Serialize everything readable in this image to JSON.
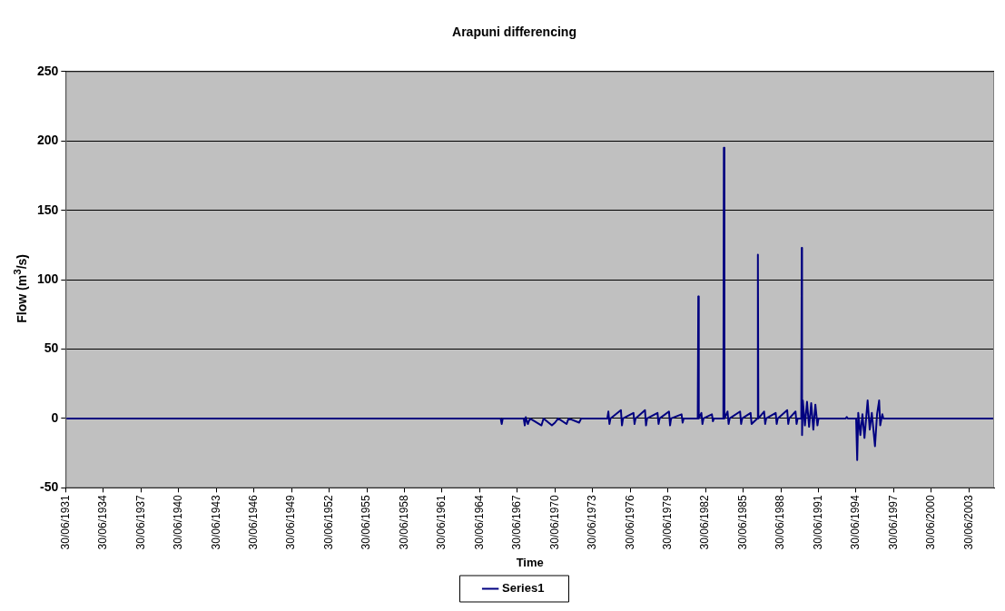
{
  "chart_data": {
    "type": "line",
    "title": "Arapuni differencing",
    "xlabel": "Time",
    "ylabel": "Flow (m$^{3}$/s)",
    "xlim": [
      "1931-06-30",
      "2005-06-30"
    ],
    "xticks": [
      {
        "value": "1931-06-30",
        "label": "30/06/1931"
      },
      {
        "value": "1934-06-30",
        "label": "30/06/1934"
      },
      {
        "value": "1937-06-30",
        "label": "30/06/1937"
      },
      {
        "value": "1940-06-30",
        "label": "30/06/1940"
      },
      {
        "value": "1943-06-30",
        "label": "30/06/1943"
      },
      {
        "value": "1946-06-30",
        "label": "30/06/1946"
      },
      {
        "value": "1949-06-30",
        "label": "30/06/1949"
      },
      {
        "value": "1952-06-30",
        "label": "30/06/1952"
      },
      {
        "value": "1955-06-30",
        "label": "30/06/1955"
      },
      {
        "value": "1958-06-30",
        "label": "30/06/1958"
      },
      {
        "value": "1961-06-30",
        "label": "30/06/1961"
      },
      {
        "value": "1964-06-30",
        "label": "30/06/1964"
      },
      {
        "value": "1967-06-30",
        "label": "30/06/1967"
      },
      {
        "value": "1970-06-30",
        "label": "30/06/1970"
      },
      {
        "value": "1973-06-30",
        "label": "30/06/1973"
      },
      {
        "value": "1976-06-30",
        "label": "30/06/1976"
      },
      {
        "value": "1979-06-30",
        "label": "30/06/1979"
      },
      {
        "value": "1982-06-30",
        "label": "30/06/1982"
      },
      {
        "value": "1985-06-30",
        "label": "30/06/1985"
      },
      {
        "value": "1988-06-30",
        "label": "30/06/1988"
      },
      {
        "value": "1991-06-30",
        "label": "30/06/1991"
      },
      {
        "value": "1994-06-30",
        "label": "30/06/1994"
      },
      {
        "value": "1997-06-30",
        "label": "30/06/1997"
      },
      {
        "value": "2000-06-30",
        "label": "30/06/2000"
      },
      {
        "value": "2003-06-30",
        "label": "30/06/2003"
      }
    ],
    "ylim": [
      -50,
      250
    ],
    "yticks": [
      -50,
      0,
      50,
      100,
      150,
      200,
      250
    ],
    "grid": "y",
    "legend": "bottom",
    "marker": "none",
    "line_style": "solid",
    "x": [
      "1931-06-30",
      "1966-03-01",
      "1966-04-01",
      "1966-05-01",
      "1968-01-01",
      "1968-02-01",
      "1968-03-01",
      "1968-05-01",
      "1968-07-01",
      "1969-06-01",
      "1969-08-01",
      "1970-04-01",
      "1970-07-01",
      "1970-10-01",
      "1971-06-01",
      "1971-08-01",
      "1972-06-01",
      "1972-08-01",
      "1974-09-01",
      "1974-10-01",
      "1974-11-01",
      "1974-12-01",
      "1975-10-01",
      "1975-11-01",
      "1975-12-01",
      "1976-10-01",
      "1976-11-01",
      "1976-12-01",
      "1977-09-01",
      "1977-10-01",
      "1977-11-01",
      "1978-09-01",
      "1978-10-01",
      "1978-11-01",
      "1979-08-01",
      "1979-09-01",
      "1979-10-01",
      "1980-08-01",
      "1980-09-01",
      "1980-10-01",
      "1981-11-15",
      "1981-12-01",
      "1981-12-15",
      "1982-03-01",
      "1982-04-01",
      "1982-05-01",
      "1983-01-01",
      "1983-02-01",
      "1983-03-01",
      "1983-12-01",
      "1983-12-15",
      "1984-01-01",
      "1984-04-01",
      "1984-05-01",
      "1984-06-01",
      "1985-04-01",
      "1985-05-01",
      "1985-06-01",
      "1986-02-01",
      "1986-03-01",
      "1986-08-15",
      "1986-09-01",
      "1986-09-15",
      "1987-03-01",
      "1987-04-01",
      "1987-05-01",
      "1988-02-01",
      "1988-03-01",
      "1988-04-01",
      "1989-01-01",
      "1989-02-01",
      "1989-03-01",
      "1989-09-01",
      "1989-10-01",
      "1989-11-01",
      "1990-02-15",
      "1990-03-01",
      "1990-03-10",
      "1990-04-01",
      "1990-06-01",
      "1990-08-01",
      "1990-10-01",
      "1990-12-01",
      "1991-02-01",
      "1991-04-01",
      "1991-06-01",
      "1991-07-01",
      "1993-09-01",
      "1993-10-01",
      "1993-11-01",
      "1994-07-01",
      "1994-08-01",
      "1994-09-01",
      "1994-11-01",
      "1995-01-01",
      "1995-03-01",
      "1995-06-01",
      "1995-08-01",
      "1995-10-01",
      "1996-01-01",
      "1996-03-01",
      "1996-05-01",
      "1996-06-01",
      "1996-08-01",
      "1996-09-01",
      "2005-06-30"
    ],
    "series": [
      {
        "name": "Series1",
        "color": "#000080",
        "values": [
          0,
          0,
          -4,
          0,
          0,
          -5,
          1,
          -4,
          0,
          -5,
          0,
          -5,
          -3,
          0,
          -4,
          0,
          -3,
          0,
          0,
          5,
          -4,
          0,
          6,
          -5,
          0,
          4,
          -4,
          0,
          6,
          -5,
          0,
          4,
          -4,
          0,
          5,
          -5,
          0,
          3,
          -3,
          0,
          0,
          88,
          0,
          4,
          -4,
          0,
          3,
          -2,
          0,
          0,
          195,
          0,
          5,
          -4,
          0,
          5,
          -4,
          0,
          4,
          -4,
          0,
          118,
          0,
          5,
          -4,
          0,
          4,
          -4,
          0,
          6,
          -4,
          0,
          5,
          -4,
          0,
          0,
          123,
          -12,
          13,
          -5,
          12,
          -6,
          11,
          -8,
          10,
          -5,
          0,
          0,
          1,
          0,
          0,
          -30,
          4,
          -12,
          3,
          -14,
          13,
          -8,
          4,
          -20,
          3,
          13,
          -5,
          3,
          0,
          0
        ]
      }
    ]
  }
}
